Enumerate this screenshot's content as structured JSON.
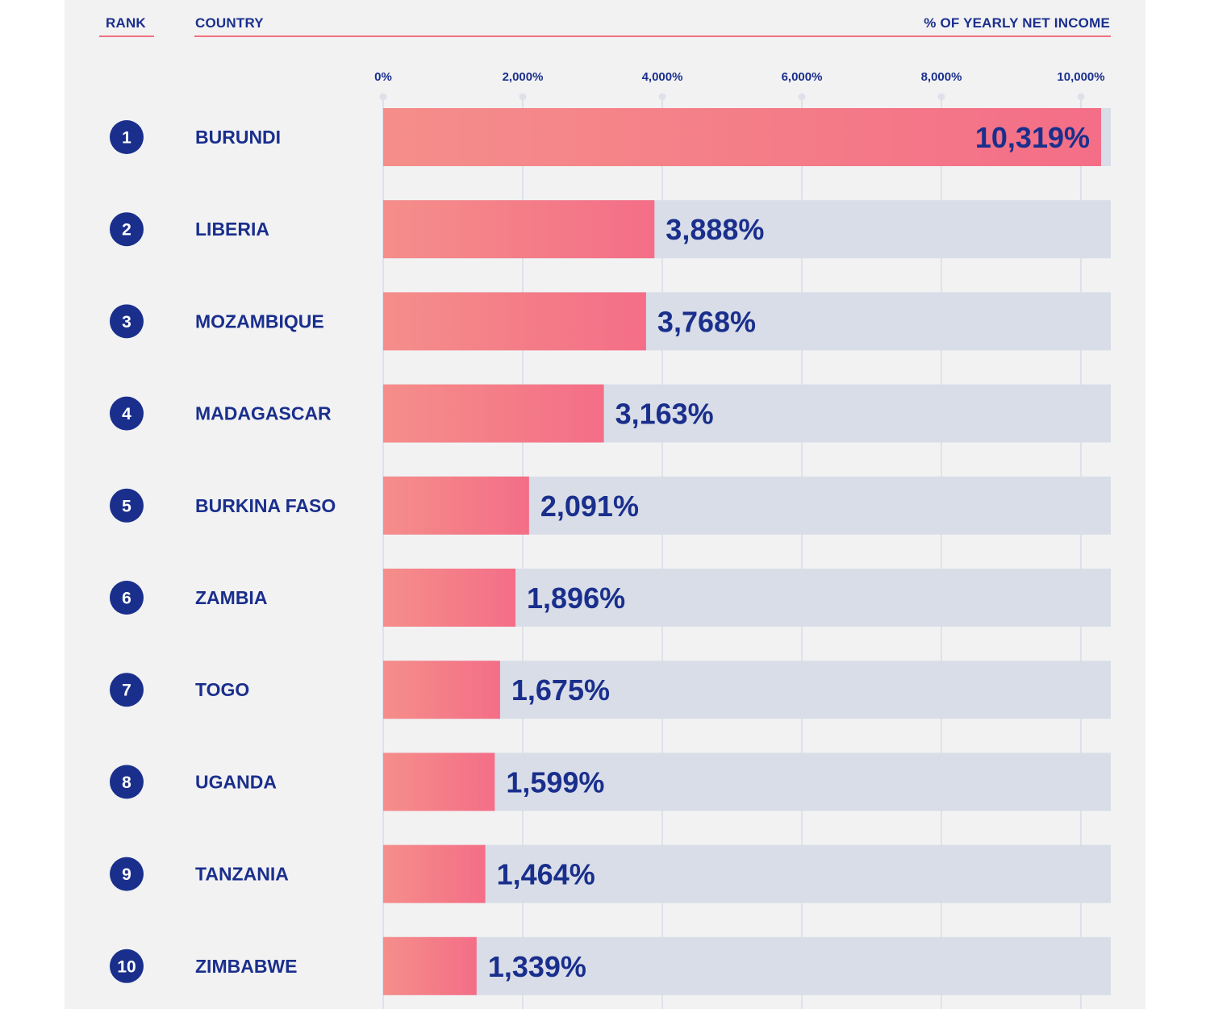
{
  "header": {
    "rank_label": "RANK",
    "country_label": "COUNTRY",
    "metric_label": "% OF YEARLY NET INCOME"
  },
  "colors": {
    "background": "#f2f2f3",
    "text": "#1a2f8c",
    "bar_start": "#f58e8a",
    "bar_end": "#f46e87",
    "bar_track": "#d8dde8",
    "grid": "#dfe1ea",
    "accent_line": "#f0707e"
  },
  "chart_data": {
    "type": "bar",
    "orientation": "horizontal",
    "categories": [
      "BURUNDI",
      "LIBERIA",
      "MOZAMBIQUE",
      "MADAGASCAR",
      "BURKINA FASO",
      "ZAMBIA",
      "TOGO",
      "UGANDA",
      "TANZANIA",
      "ZIMBABWE"
    ],
    "ranks": [
      "1",
      "2",
      "3",
      "4",
      "5",
      "6",
      "7",
      "8",
      "9",
      "10"
    ],
    "values": [
      10319,
      3888,
      3768,
      3163,
      2091,
      1896,
      1675,
      1599,
      1464,
      1339
    ],
    "value_labels": [
      "10,319%",
      "3,888%",
      "3,768%",
      "3,163%",
      "2,091%",
      "1,896%",
      "1,675%",
      "1,599%",
      "1,464%",
      "1,339%"
    ],
    "xlim": [
      0,
      10450
    ],
    "xticks": [
      0,
      2000,
      4000,
      6000,
      8000,
      10000
    ],
    "xtick_labels": [
      "0%",
      "2,000%",
      "4,000%",
      "6,000%",
      "8,000%",
      "10,000%"
    ],
    "grid": true
  }
}
